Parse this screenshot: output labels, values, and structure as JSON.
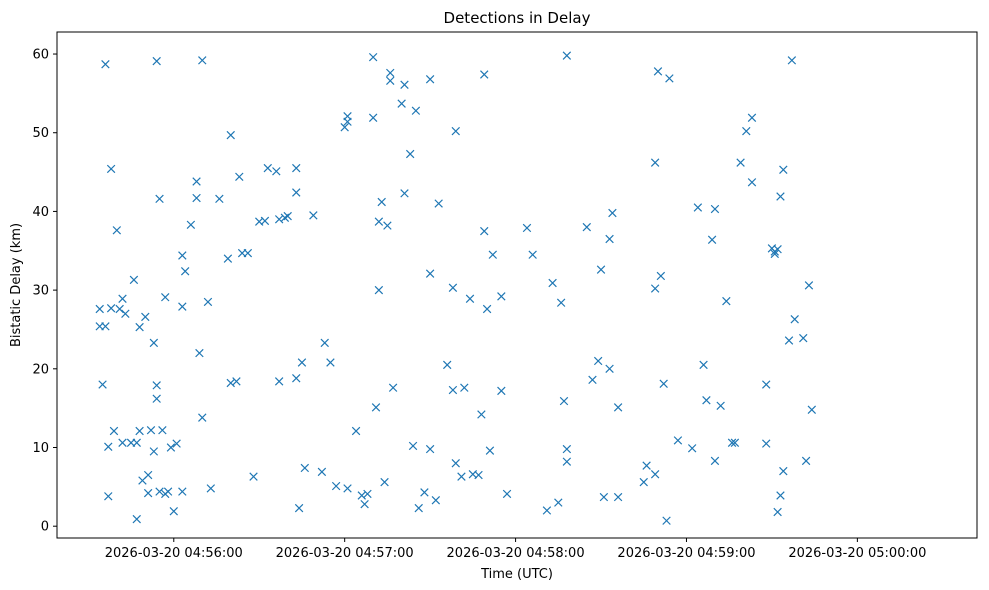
{
  "chart_data": {
    "type": "scatter",
    "title": "Detections in Delay",
    "xlabel": "Time (UTC)",
    "ylabel": "Bistatic Delay (km)",
    "marker": "x",
    "color": "#1f77b4",
    "grid": false,
    "legend": "none",
    "x_type": "datetime",
    "xlim": [
      "2026-03-20 04:55:19",
      "2026-03-20 05:00:42"
    ],
    "ylim": [
      -1.5,
      62.8
    ],
    "xticks": [
      "2026-03-20 04:56:00",
      "2026-03-20 04:57:00",
      "2026-03-20 04:58:00",
      "2026-03-20 04:59:00",
      "2026-03-20 05:00:00"
    ],
    "yticks": [
      0,
      10,
      20,
      30,
      40,
      50,
      60
    ],
    "series": [
      {
        "values": [
          [
            "04:55:34",
            27.6
          ],
          [
            "04:55:34",
            25.4
          ],
          [
            "04:55:35",
            18.0
          ],
          [
            "04:55:36",
            58.7
          ],
          [
            "04:55:36",
            25.4
          ],
          [
            "04:55:37",
            3.8
          ],
          [
            "04:55:37",
            10.1
          ],
          [
            "04:55:38",
            45.4
          ],
          [
            "04:55:38",
            27.7
          ],
          [
            "04:55:39",
            12.1
          ],
          [
            "04:55:40",
            37.6
          ],
          [
            "04:55:41",
            27.6
          ],
          [
            "04:55:42",
            28.9
          ],
          [
            "04:55:42",
            10.6
          ],
          [
            "04:55:43",
            27.0
          ],
          [
            "04:55:45",
            10.6
          ],
          [
            "04:55:46",
            31.3
          ],
          [
            "04:55:47",
            10.6
          ],
          [
            "04:55:47",
            0.9
          ],
          [
            "04:55:48",
            25.3
          ],
          [
            "04:55:48",
            12.1
          ],
          [
            "04:55:49",
            5.8
          ],
          [
            "04:55:50",
            26.6
          ],
          [
            "04:55:51",
            6.5
          ],
          [
            "04:55:51",
            4.2
          ],
          [
            "04:55:52",
            12.2
          ],
          [
            "04:55:53",
            23.3
          ],
          [
            "04:55:53",
            9.5
          ],
          [
            "04:55:54",
            59.1
          ],
          [
            "04:55:54",
            17.9
          ],
          [
            "04:55:54",
            16.2
          ],
          [
            "04:55:55",
            41.6
          ],
          [
            "04:55:55",
            4.4
          ],
          [
            "04:55:56",
            12.2
          ],
          [
            "04:55:57",
            4.1
          ],
          [
            "04:55:57",
            29.1
          ],
          [
            "04:55:58",
            4.4
          ],
          [
            "04:55:59",
            10.0
          ],
          [
            "04:56:00",
            1.9
          ],
          [
            "04:56:01",
            10.5
          ],
          [
            "04:56:03",
            34.4
          ],
          [
            "04:56:03",
            27.9
          ],
          [
            "04:56:03",
            4.4
          ],
          [
            "04:56:04",
            32.4
          ],
          [
            "04:56:06",
            38.3
          ],
          [
            "04:56:08",
            41.7
          ],
          [
            "04:56:08",
            43.8
          ],
          [
            "04:56:09",
            22.0
          ],
          [
            "04:56:10",
            59.2
          ],
          [
            "04:56:10",
            13.8
          ],
          [
            "04:56:12",
            28.5
          ],
          [
            "04:56:13",
            4.8
          ],
          [
            "04:56:16",
            41.6
          ],
          [
            "04:56:19",
            34.0
          ],
          [
            "04:56:20",
            49.7
          ],
          [
            "04:56:20",
            18.2
          ],
          [
            "04:56:22",
            18.4
          ],
          [
            "04:56:23",
            44.4
          ],
          [
            "04:56:24",
            34.7
          ],
          [
            "04:56:26",
            34.7
          ],
          [
            "04:56:28",
            6.3
          ],
          [
            "04:56:30",
            38.7
          ],
          [
            "04:56:32",
            38.8
          ],
          [
            "04:56:33",
            45.5
          ],
          [
            "04:56:36",
            45.1
          ],
          [
            "04:56:37",
            18.4
          ],
          [
            "04:56:37",
            39.0
          ],
          [
            "04:56:39",
            39.2
          ],
          [
            "04:56:40",
            39.4
          ],
          [
            "04:56:43",
            45.5
          ],
          [
            "04:56:43",
            42.4
          ],
          [
            "04:56:43",
            18.8
          ],
          [
            "04:56:44",
            2.3
          ],
          [
            "04:56:45",
            20.8
          ],
          [
            "04:56:46",
            7.4
          ],
          [
            "04:56:49",
            39.5
          ],
          [
            "04:56:52",
            6.9
          ],
          [
            "04:56:53",
            23.3
          ],
          [
            "04:56:55",
            20.8
          ],
          [
            "04:56:57",
            5.1
          ],
          [
            "04:57:00",
            50.7
          ],
          [
            "04:57:01",
            52.1
          ],
          [
            "04:57:01",
            51.4
          ],
          [
            "04:57:01",
            4.8
          ],
          [
            "04:57:04",
            12.1
          ],
          [
            "04:57:06",
            3.9
          ],
          [
            "04:57:07",
            2.8
          ],
          [
            "04:57:08",
            4.1
          ],
          [
            "04:57:10",
            59.6
          ],
          [
            "04:57:10",
            51.9
          ],
          [
            "04:57:11",
            15.1
          ],
          [
            "04:57:12",
            30.0
          ],
          [
            "04:57:12",
            38.7
          ],
          [
            "04:57:13",
            41.2
          ],
          [
            "04:57:14",
            5.6
          ],
          [
            "04:57:15",
            38.2
          ],
          [
            "04:57:16",
            57.6
          ],
          [
            "04:57:16",
            56.6
          ],
          [
            "04:57:17",
            17.6
          ],
          [
            "04:57:20",
            53.7
          ],
          [
            "04:57:21",
            56.1
          ],
          [
            "04:57:21",
            42.3
          ],
          [
            "04:57:23",
            47.3
          ],
          [
            "04:57:24",
            10.2
          ],
          [
            "04:57:25",
            52.8
          ],
          [
            "04:57:26",
            2.3
          ],
          [
            "04:57:28",
            4.3
          ],
          [
            "04:57:30",
            56.8
          ],
          [
            "04:57:30",
            32.1
          ],
          [
            "04:57:30",
            9.8
          ],
          [
            "04:57:32",
            3.3
          ],
          [
            "04:57:33",
            41.0
          ],
          [
            "04:57:36",
            20.5
          ],
          [
            "04:57:38",
            30.3
          ],
          [
            "04:57:38",
            17.3
          ],
          [
            "04:57:39",
            50.2
          ],
          [
            "04:57:39",
            8.0
          ],
          [
            "04:57:41",
            6.3
          ],
          [
            "04:57:42",
            17.6
          ],
          [
            "04:57:44",
            28.9
          ],
          [
            "04:57:45",
            6.6
          ],
          [
            "04:57:47",
            6.5
          ],
          [
            "04:57:48",
            14.2
          ],
          [
            "04:57:49",
            57.4
          ],
          [
            "04:57:49",
            37.5
          ],
          [
            "04:57:50",
            27.6
          ],
          [
            "04:57:51",
            9.6
          ],
          [
            "04:57:52",
            34.5
          ],
          [
            "04:57:55",
            17.2
          ],
          [
            "04:57:55",
            29.2
          ],
          [
            "04:57:57",
            4.1
          ],
          [
            "04:58:04",
            37.9
          ],
          [
            "04:58:06",
            34.5
          ],
          [
            "04:58:11",
            2.0
          ],
          [
            "04:58:13",
            30.9
          ],
          [
            "04:58:15",
            3.0
          ],
          [
            "04:58:16",
            28.4
          ],
          [
            "04:58:17",
            15.9
          ],
          [
            "04:58:18",
            59.8
          ],
          [
            "04:58:18",
            9.8
          ],
          [
            "04:58:18",
            8.2
          ],
          [
            "04:58:25",
            38.0
          ],
          [
            "04:58:27",
            18.6
          ],
          [
            "04:58:29",
            21.0
          ],
          [
            "04:58:30",
            32.6
          ],
          [
            "04:58:31",
            3.7
          ],
          [
            "04:58:33",
            36.5
          ],
          [
            "04:58:33",
            20.0
          ],
          [
            "04:58:34",
            39.8
          ],
          [
            "04:58:36",
            3.7
          ],
          [
            "04:58:36",
            15.1
          ],
          [
            "04:58:45",
            5.6
          ],
          [
            "04:58:46",
            7.7
          ],
          [
            "04:58:49",
            46.2
          ],
          [
            "04:58:49",
            30.2
          ],
          [
            "04:58:49",
            6.6
          ],
          [
            "04:58:50",
            57.8
          ],
          [
            "04:58:51",
            31.8
          ],
          [
            "04:58:52",
            18.1
          ],
          [
            "04:58:53",
            0.7
          ],
          [
            "04:58:54",
            56.9
          ],
          [
            "04:58:57",
            10.9
          ],
          [
            "04:59:02",
            9.9
          ],
          [
            "04:59:04",
            40.5
          ],
          [
            "04:59:06",
            20.5
          ],
          [
            "04:59:07",
            16.0
          ],
          [
            "04:59:09",
            36.4
          ],
          [
            "04:59:10",
            40.3
          ],
          [
            "04:59:10",
            8.3
          ],
          [
            "04:59:12",
            15.3
          ],
          [
            "04:59:14",
            28.6
          ],
          [
            "04:59:16",
            10.6
          ],
          [
            "04:59:17",
            10.6
          ],
          [
            "04:59:19",
            46.2
          ],
          [
            "04:59:21",
            50.2
          ],
          [
            "04:59:23",
            51.9
          ],
          [
            "04:59:23",
            43.7
          ],
          [
            "04:59:28",
            18.0
          ],
          [
            "04:59:28",
            10.5
          ],
          [
            "04:59:30",
            35.3
          ],
          [
            "04:59:31",
            34.9
          ],
          [
            "04:59:31",
            34.6
          ],
          [
            "04:59:32",
            1.8
          ],
          [
            "04:59:32",
            35.2
          ],
          [
            "04:59:33",
            41.9
          ],
          [
            "04:59:33",
            3.9
          ],
          [
            "04:59:34",
            7.0
          ],
          [
            "04:59:34",
            45.3
          ],
          [
            "04:59:36",
            23.6
          ],
          [
            "04:59:37",
            59.2
          ],
          [
            "04:59:38",
            26.3
          ],
          [
            "04:59:41",
            23.9
          ],
          [
            "04:59:42",
            8.3
          ],
          [
            "04:59:43",
            30.6
          ],
          [
            "04:59:44",
            14.8
          ]
        ]
      }
    ]
  }
}
